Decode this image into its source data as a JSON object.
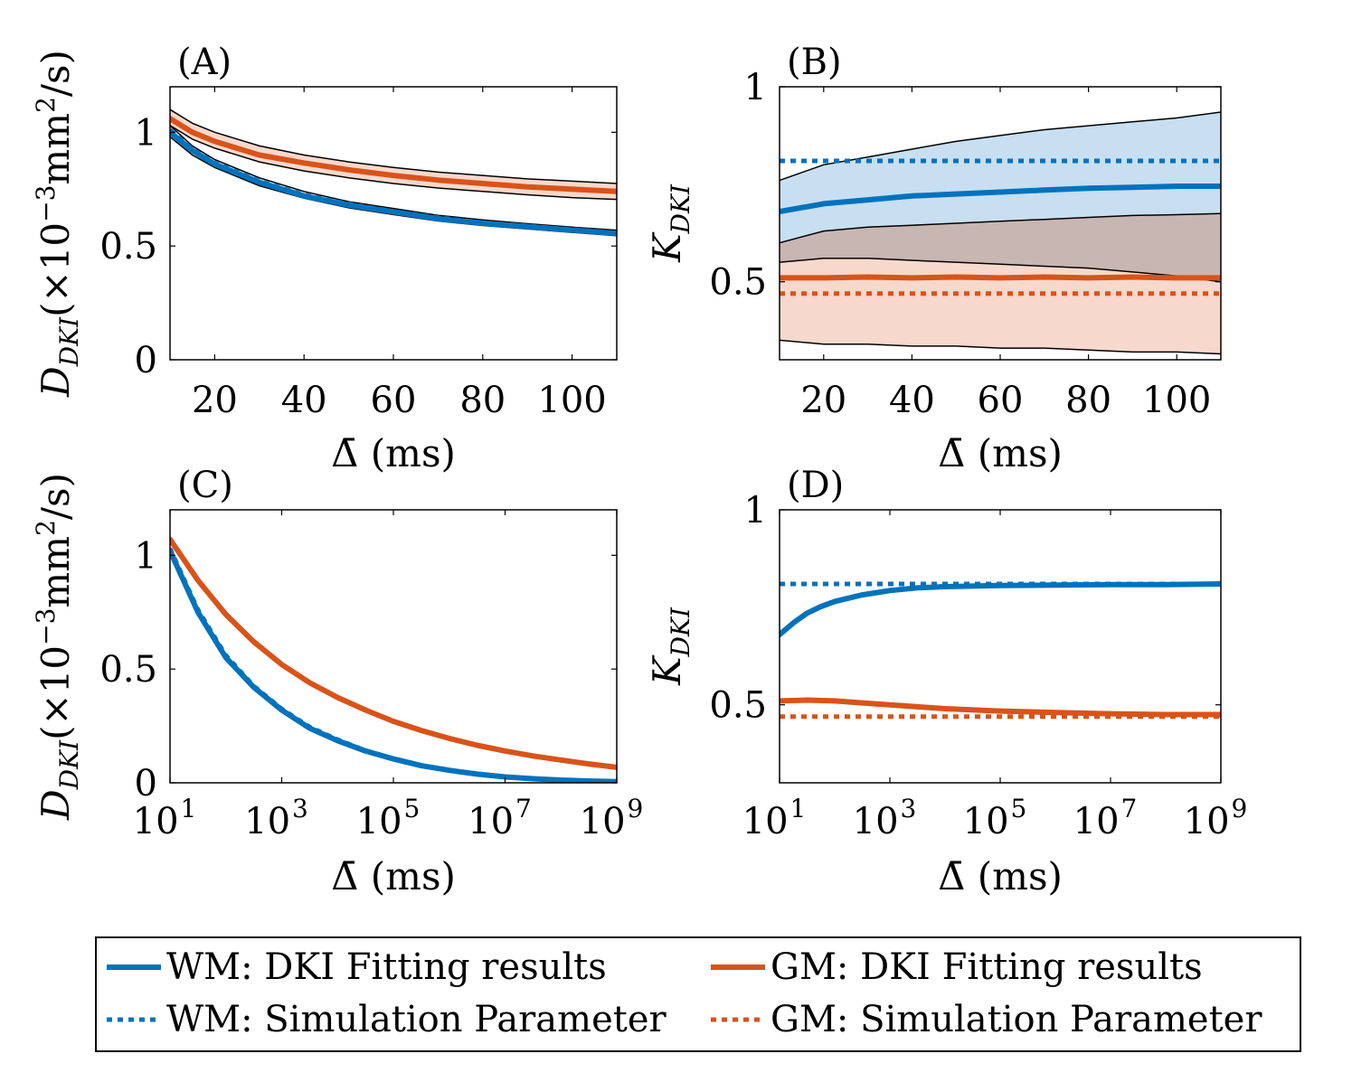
{
  "colors": {
    "wm": "#0072BD",
    "gm": "#D95319",
    "wm_fill": "#BDD9EF",
    "gm_fill": "#F6D1C3",
    "overlap_fill": "#C8B6B3"
  },
  "chart_data": [
    {
      "id": "A",
      "type": "line",
      "panel_label": "(A)",
      "xlabel": "Δ̄ (ms)",
      "ylabel_main": "D",
      "ylabel_sub": "DKI",
      "ylabel_unit_pre": "(×10",
      "ylabel_unit_exp": "−3",
      "ylabel_unit_mid": "mm",
      "ylabel_unit_exp2": "2",
      "ylabel_unit_post": "/s)",
      "xscale": "linear",
      "xlim": [
        10,
        110
      ],
      "ylim": [
        0,
        1.2
      ],
      "xticks": [
        20,
        40,
        60,
        80,
        100
      ],
      "xtick_labels": [
        "20",
        "40",
        "60",
        "80",
        "100"
      ],
      "yticks": [
        0,
        0.5,
        1
      ],
      "ytick_labels": [
        "0",
        "0.5",
        "1"
      ],
      "series": [
        {
          "name": "WM: DKI Fitting results",
          "color": "wm",
          "style": "solid",
          "x": [
            10,
            15,
            20,
            30,
            40,
            50,
            60,
            70,
            80,
            90,
            100,
            110
          ],
          "y": [
            1.0,
            0.92,
            0.86,
            0.78,
            0.72,
            0.68,
            0.65,
            0.62,
            0.6,
            0.585,
            0.57,
            0.555
          ],
          "band_low": [
            0.98,
            0.9,
            0.845,
            0.765,
            0.71,
            0.668,
            0.638,
            0.61,
            0.59,
            0.575,
            0.56,
            0.545
          ],
          "band_high": [
            1.03,
            0.94,
            0.88,
            0.8,
            0.74,
            0.695,
            0.665,
            0.635,
            0.615,
            0.598,
            0.583,
            0.57
          ]
        },
        {
          "name": "WM: Simulation Parameter",
          "color": "wm",
          "style": "dotted",
          "x": [
            10,
            15,
            20,
            30,
            40,
            50,
            60,
            70,
            80,
            90,
            100,
            110
          ],
          "y": [
            1.01,
            0.925,
            0.865,
            0.785,
            0.725,
            0.685,
            0.652,
            0.625,
            0.603,
            0.588,
            0.573,
            0.558
          ]
        },
        {
          "name": "GM: DKI Fitting results",
          "color": "gm",
          "style": "solid",
          "x": [
            10,
            15,
            20,
            30,
            40,
            50,
            60,
            70,
            80,
            90,
            100,
            110
          ],
          "y": [
            1.06,
            1.0,
            0.96,
            0.9,
            0.865,
            0.835,
            0.81,
            0.79,
            0.775,
            0.76,
            0.75,
            0.74
          ],
          "band_low": [
            1.03,
            0.97,
            0.93,
            0.87,
            0.83,
            0.8,
            0.775,
            0.755,
            0.74,
            0.725,
            0.713,
            0.705
          ],
          "band_high": [
            1.1,
            1.04,
            1.0,
            0.94,
            0.9,
            0.87,
            0.845,
            0.825,
            0.81,
            0.795,
            0.785,
            0.775
          ]
        },
        {
          "name": "GM: Simulation Parameter",
          "color": "gm",
          "style": "dotted",
          "x": [
            10,
            15,
            20,
            30,
            40,
            50,
            60,
            70,
            80,
            90,
            100,
            110
          ],
          "y": [
            1.06,
            1.0,
            0.96,
            0.9,
            0.865,
            0.835,
            0.81,
            0.79,
            0.775,
            0.76,
            0.75,
            0.74
          ]
        }
      ]
    },
    {
      "id": "B",
      "type": "line",
      "panel_label": "(B)",
      "xlabel": "Δ̄ (ms)",
      "ylabel_main": "K",
      "ylabel_sub": "DKI",
      "xscale": "linear",
      "xlim": [
        10,
        110
      ],
      "ylim": [
        0.3,
        1
      ],
      "xticks": [
        20,
        40,
        60,
        80,
        100
      ],
      "xtick_labels": [
        "20",
        "40",
        "60",
        "80",
        "100"
      ],
      "yticks": [
        0.5,
        1
      ],
      "ytick_labels": [
        "0.5",
        "1"
      ],
      "series": [
        {
          "name": "WM: DKI Fitting results",
          "color": "wm",
          "style": "solid",
          "x": [
            10,
            20,
            30,
            40,
            50,
            60,
            70,
            80,
            90,
            100,
            110
          ],
          "y": [
            0.68,
            0.7,
            0.71,
            0.72,
            0.725,
            0.73,
            0.735,
            0.74,
            0.742,
            0.745,
            0.745
          ],
          "band_low": [
            0.6,
            0.63,
            0.64,
            0.645,
            0.65,
            0.655,
            0.66,
            0.665,
            0.67,
            0.672,
            0.675
          ],
          "band_high": [
            0.76,
            0.8,
            0.82,
            0.84,
            0.86,
            0.875,
            0.89,
            0.9,
            0.91,
            0.92,
            0.935
          ]
        },
        {
          "name": "WM: Simulation Parameter",
          "color": "wm",
          "style": "dotted",
          "x": [
            10,
            110
          ],
          "y": [
            0.81,
            0.81
          ]
        },
        {
          "name": "GM: DKI Fitting results",
          "color": "gm",
          "style": "solid",
          "x": [
            10,
            20,
            30,
            40,
            50,
            60,
            70,
            80,
            90,
            100,
            110
          ],
          "y": [
            0.51,
            0.51,
            0.512,
            0.51,
            0.512,
            0.51,
            0.512,
            0.51,
            0.512,
            0.51,
            0.51
          ],
          "band_low": [
            0.35,
            0.34,
            0.34,
            0.335,
            0.335,
            0.33,
            0.33,
            0.325,
            0.32,
            0.32,
            0.315
          ],
          "band_high": [
            0.55,
            0.56,
            0.56,
            0.555,
            0.55,
            0.545,
            0.54,
            0.535,
            0.525,
            0.515,
            0.5
          ]
        },
        {
          "name": "GM: Simulation Parameter",
          "color": "gm",
          "style": "dotted",
          "x": [
            10,
            110
          ],
          "y": [
            0.47,
            0.47
          ]
        }
      ]
    },
    {
      "id": "C",
      "type": "line",
      "panel_label": "(C)",
      "xlabel": "Δ̄ (ms)",
      "ylabel_main": "D",
      "ylabel_sub": "DKI",
      "ylabel_unit_pre": "(×10",
      "ylabel_unit_exp": "−3",
      "ylabel_unit_mid": "mm",
      "ylabel_unit_exp2": "2",
      "ylabel_unit_post": "/s)",
      "xscale": "log",
      "xlim": [
        1,
        9
      ],
      "ylim": [
        0,
        1.2
      ],
      "xticks": [
        1,
        3,
        5,
        7,
        9
      ],
      "xtick_base": "10",
      "xtick_exps": [
        "1",
        "3",
        "5",
        "7",
        "9"
      ],
      "yticks": [
        0,
        0.5,
        1
      ],
      "ytick_labels": [
        "0",
        "0.5",
        "1"
      ],
      "series": [
        {
          "name": "WM: DKI Fitting results",
          "color": "wm",
          "style": "solid",
          "x": [
            1,
            1.5,
            2,
            2.5,
            3,
            3.5,
            4,
            4.5,
            5,
            5.5,
            6,
            6.5,
            7,
            7.5,
            8,
            8.5,
            9
          ],
          "y": [
            1.02,
            0.75,
            0.55,
            0.42,
            0.32,
            0.24,
            0.185,
            0.14,
            0.105,
            0.075,
            0.055,
            0.038,
            0.026,
            0.018,
            0.012,
            0.008,
            0.005
          ]
        },
        {
          "name": "WM: Simulation Parameter",
          "color": "wm",
          "style": "dotted",
          "x": [
            1,
            1.5,
            2,
            2.5,
            3,
            3.5,
            4,
            4.5,
            5,
            5.5,
            6,
            6.5,
            7,
            7.5,
            8,
            8.5,
            9
          ],
          "y": [
            1.03,
            0.76,
            0.56,
            0.425,
            0.325,
            0.245,
            0.19,
            0.142,
            0.107,
            0.077,
            0.056,
            0.039,
            0.027,
            0.018,
            0.012,
            0.008,
            0.005
          ]
        },
        {
          "name": "GM: DKI Fitting results",
          "color": "gm",
          "style": "solid",
          "x": [
            1,
            1.5,
            2,
            2.5,
            3,
            3.5,
            4,
            4.5,
            5,
            5.5,
            6,
            6.5,
            7,
            7.5,
            8,
            8.5,
            9
          ],
          "y": [
            1.07,
            0.89,
            0.74,
            0.62,
            0.52,
            0.44,
            0.375,
            0.32,
            0.27,
            0.23,
            0.195,
            0.165,
            0.14,
            0.118,
            0.1,
            0.083,
            0.068
          ]
        },
        {
          "name": "GM: Simulation Parameter",
          "color": "gm",
          "style": "dotted",
          "x": [
            1,
            1.5,
            2,
            2.5,
            3,
            3.5,
            4,
            4.5,
            5,
            5.5,
            6,
            6.5,
            7,
            7.5,
            8,
            8.5,
            9
          ],
          "y": [
            1.07,
            0.89,
            0.74,
            0.62,
            0.52,
            0.44,
            0.375,
            0.32,
            0.27,
            0.23,
            0.195,
            0.165,
            0.14,
            0.118,
            0.1,
            0.083,
            0.068
          ]
        }
      ]
    },
    {
      "id": "D",
      "type": "line",
      "panel_label": "(D)",
      "xlabel": "Δ̄ (ms)",
      "ylabel_main": "K",
      "ylabel_sub": "DKI",
      "xscale": "log",
      "xlim": [
        1,
        9
      ],
      "ylim": [
        0.3,
        1
      ],
      "xticks": [
        1,
        3,
        5,
        7,
        9
      ],
      "xtick_base": "10",
      "xtick_exps": [
        "1",
        "3",
        "5",
        "7",
        "9"
      ],
      "yticks": [
        0.5,
        1
      ],
      "ytick_labels": [
        "0.5",
        "1"
      ],
      "series": [
        {
          "name": "WM: DKI Fitting results",
          "color": "wm",
          "style": "solid",
          "x": [
            1,
            1.25,
            1.5,
            1.75,
            2,
            2.5,
            3,
            3.5,
            4,
            5,
            6,
            7,
            8,
            9
          ],
          "y": [
            0.68,
            0.71,
            0.735,
            0.752,
            0.765,
            0.782,
            0.793,
            0.8,
            0.803,
            0.806,
            0.807,
            0.808,
            0.808,
            0.81
          ]
        },
        {
          "name": "WM: Simulation Parameter",
          "color": "wm",
          "style": "dotted",
          "x": [
            1,
            9
          ],
          "y": [
            0.81,
            0.81
          ]
        },
        {
          "name": "GM: DKI Fitting results",
          "color": "gm",
          "style": "solid",
          "x": [
            1,
            1.5,
            2,
            2.5,
            3,
            3.5,
            4,
            5,
            6,
            7,
            8,
            9
          ],
          "y": [
            0.51,
            0.512,
            0.51,
            0.505,
            0.5,
            0.495,
            0.49,
            0.484,
            0.48,
            0.477,
            0.475,
            0.475
          ]
        },
        {
          "name": "GM: Simulation Parameter",
          "color": "gm",
          "style": "dotted",
          "x": [
            1,
            9
          ],
          "y": [
            0.47,
            0.47
          ]
        }
      ]
    }
  ],
  "legend": {
    "items": [
      {
        "label": "WM: DKI Fitting results",
        "color": "wm",
        "style": "solid"
      },
      {
        "label": "GM: DKI Fitting results",
        "color": "gm",
        "style": "solid"
      },
      {
        "label": "WM: Simulation Parameter",
        "color": "wm",
        "style": "dotted"
      },
      {
        "label": "GM: Simulation Parameter",
        "color": "gm",
        "style": "dotted"
      }
    ]
  }
}
